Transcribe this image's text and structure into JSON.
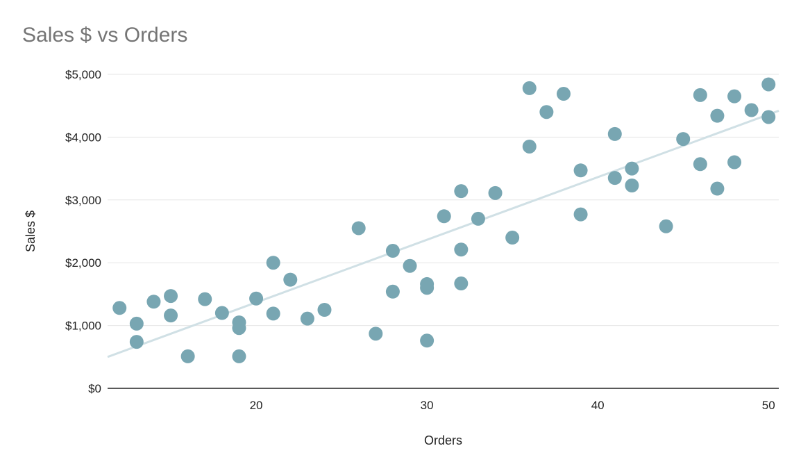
{
  "colors": {
    "points": "#78a6b2",
    "trendline": "#d0e0e5",
    "grid": "#e6e6e6",
    "axis": "#222222",
    "title": "#757575"
  },
  "chart_data": {
    "type": "scatter",
    "title": "Sales $ vs Orders",
    "xlabel": "Orders",
    "ylabel": "Sales $",
    "xlim": [
      11.3,
      50.6
    ],
    "ylim": [
      0,
      5000
    ],
    "x_ticks": [
      20,
      30,
      40,
      50
    ],
    "x_tick_labels": [
      "20",
      "30",
      "40",
      "50"
    ],
    "y_ticks": [
      0,
      1000,
      2000,
      3000,
      4000,
      5000
    ],
    "y_tick_labels": [
      "$0",
      "$1,000",
      "$2,000",
      "$3,000",
      "$4,000",
      "$5,000"
    ],
    "grid": true,
    "legend": "none",
    "trendline": {
      "type": "linear",
      "x": [
        11.3,
        50.6
      ],
      "y": [
        500,
        4420
      ]
    },
    "points": [
      {
        "x": 12,
        "y": 1280
      },
      {
        "x": 13,
        "y": 1030
      },
      {
        "x": 13,
        "y": 740
      },
      {
        "x": 14,
        "y": 1380
      },
      {
        "x": 15,
        "y": 1470
      },
      {
        "x": 15,
        "y": 1160
      },
      {
        "x": 16,
        "y": 510
      },
      {
        "x": 17,
        "y": 1420
      },
      {
        "x": 18,
        "y": 1200
      },
      {
        "x": 19,
        "y": 1050
      },
      {
        "x": 19,
        "y": 960
      },
      {
        "x": 19,
        "y": 510
      },
      {
        "x": 20,
        "y": 1430
      },
      {
        "x": 21,
        "y": 2000
      },
      {
        "x": 21,
        "y": 1190
      },
      {
        "x": 22,
        "y": 1730
      },
      {
        "x": 23,
        "y": 1110
      },
      {
        "x": 24,
        "y": 1250
      },
      {
        "x": 26,
        "y": 2550
      },
      {
        "x": 27,
        "y": 870
      },
      {
        "x": 28,
        "y": 2190
      },
      {
        "x": 28,
        "y": 1540
      },
      {
        "x": 29,
        "y": 1950
      },
      {
        "x": 30,
        "y": 1660
      },
      {
        "x": 30,
        "y": 1600
      },
      {
        "x": 30,
        "y": 760
      },
      {
        "x": 31,
        "y": 2740
      },
      {
        "x": 32,
        "y": 3140
      },
      {
        "x": 32,
        "y": 2210
      },
      {
        "x": 32,
        "y": 1670
      },
      {
        "x": 33,
        "y": 2700
      },
      {
        "x": 34,
        "y": 3110
      },
      {
        "x": 35,
        "y": 2400
      },
      {
        "x": 36,
        "y": 4780
      },
      {
        "x": 36,
        "y": 3850
      },
      {
        "x": 37,
        "y": 4400
      },
      {
        "x": 38,
        "y": 4690
      },
      {
        "x": 39,
        "y": 3470
      },
      {
        "x": 39,
        "y": 2770
      },
      {
        "x": 41,
        "y": 4050
      },
      {
        "x": 41,
        "y": 3350
      },
      {
        "x": 42,
        "y": 3500
      },
      {
        "x": 42,
        "y": 3230
      },
      {
        "x": 44,
        "y": 2580
      },
      {
        "x": 45,
        "y": 3970
      },
      {
        "x": 46,
        "y": 4670
      },
      {
        "x": 46,
        "y": 3570
      },
      {
        "x": 47,
        "y": 4340
      },
      {
        "x": 47,
        "y": 3180
      },
      {
        "x": 48,
        "y": 4650
      },
      {
        "x": 48,
        "y": 3600
      },
      {
        "x": 49,
        "y": 4430
      },
      {
        "x": 50,
        "y": 4840
      },
      {
        "x": 50,
        "y": 4320
      }
    ]
  }
}
